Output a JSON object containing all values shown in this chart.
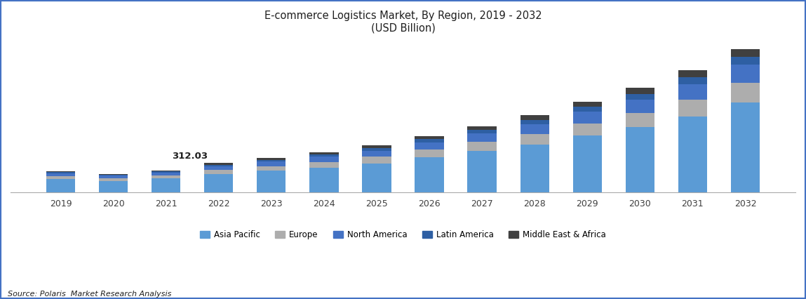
{
  "title_line1": "E-commerce Logistics Market, By Region, 2019 - 2032",
  "title_line2": "(USD Billion)",
  "years": [
    2019,
    2020,
    2021,
    2022,
    2023,
    2024,
    2025,
    2026,
    2027,
    2028,
    2029,
    2030,
    2031,
    2032
  ],
  "annotation_text": "312.03",
  "annotation_year": 2022,
  "regions": [
    "Asia Pacific",
    "Europe",
    "North America",
    "Latin America",
    "Middle East & Africa"
  ],
  "colors": [
    "#5B9BD5",
    "#ADADAD",
    "#4472C4",
    "#2E5FA3",
    "#404040"
  ],
  "data": {
    "Asia Pacific": [
      145,
      125,
      150,
      195,
      230,
      265,
      310,
      375,
      440,
      510,
      600,
      690,
      805,
      950
    ],
    "Europe": [
      30,
      28,
      32,
      42,
      50,
      58,
      68,
      80,
      95,
      110,
      130,
      150,
      175,
      205
    ],
    "North America": [
      28,
      25,
      30,
      40,
      47,
      55,
      64,
      76,
      88,
      105,
      122,
      141,
      165,
      193
    ],
    "Latin America": [
      12,
      11,
      13,
      17,
      20,
      23,
      27,
      32,
      38,
      44,
      52,
      60,
      70,
      82
    ],
    "Middle East & Africa": [
      10,
      9,
      11,
      18,
      21,
      25,
      29,
      34,
      40,
      47,
      55,
      64,
      75,
      87
    ]
  },
  "source_text": "Source: Polaris  Market Research Analysis",
  "background_color": "#FFFFFF",
  "title_color": "#1F1F1F",
  "axis_color": "#404040",
  "source_color": "#1F1F1F",
  "border_color": "#4472C4",
  "ylim": [
    0,
    1600
  ]
}
